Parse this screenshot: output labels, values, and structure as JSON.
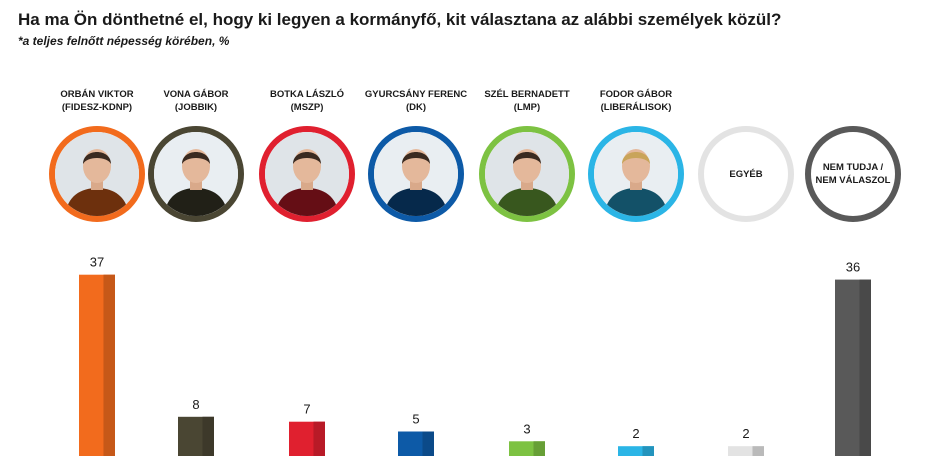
{
  "title": "Ha ma Ön dönthetné el, hogy ki legyen a kormányfő, kit választana az alábbi személyek közül?",
  "subtitle": "*a teljes felnőtt népesség körében, %",
  "candidates": [
    {
      "line1": "ORBÁN VIKTOR",
      "line2": "(FIDESZ-KDNP)",
      "ring": "#f26b1d"
    },
    {
      "line1": "VONA GÁBOR",
      "line2": "(JOBBIK)",
      "ring": "#4a4633"
    },
    {
      "line1": "BOTKA LÁSZLÓ",
      "line2": "(MSZP)",
      "ring": "#e0202f"
    },
    {
      "line1": "GYURCSÁNY FERENC",
      "line2": "(DK)",
      "ring": "#0d5aa7"
    },
    {
      "line1": "SZÉL BERNADETT",
      "line2": "(LMP)",
      "ring": "#7dc242"
    },
    {
      "line1": "FODOR GÁBOR",
      "line2": "(LIBERÁLISOK)",
      "ring": "#2bb5e6"
    },
    {
      "line1": "",
      "line2": "",
      "inner1": "EGYÉB",
      "inner2": "",
      "ring": "#e3e3e3"
    },
    {
      "line1": "",
      "line2": "",
      "inner1": "NEM TUDJA /",
      "inner2": "NEM VÁLASZOL",
      "ring": "#595959"
    }
  ],
  "chart_data": {
    "type": "bar",
    "title": "Ha ma Ön dönthetné el, hogy ki legyen a kormányfő, kit választana az alábbi személyek közül?",
    "subtitle": "*a teljes felnőtt népesség körében, %",
    "categories": [
      "ORBÁN VIKTOR (FIDESZ-KDNP)",
      "VONA GÁBOR (JOBBIK)",
      "BOTKA LÁSZLÓ (MSZP)",
      "GYURCSÁNY FERENC (DK)",
      "SZÉL BERNADETT (LMP)",
      "FODOR GÁBOR (LIBERÁLISOK)",
      "EGYÉB",
      "NEM TUDJA / NEM VÁLASZOL"
    ],
    "values": [
      37,
      8,
      7,
      5,
      3,
      2,
      2,
      36
    ],
    "colors": [
      "#f26b1d",
      "#4a4633",
      "#e0202f",
      "#0d5aa7",
      "#7dc242",
      "#2bb5e6",
      "#e3e3e3",
      "#595959"
    ],
    "data_labels": true,
    "grid": false,
    "legend": "none",
    "ylim": [
      0,
      40
    ]
  }
}
